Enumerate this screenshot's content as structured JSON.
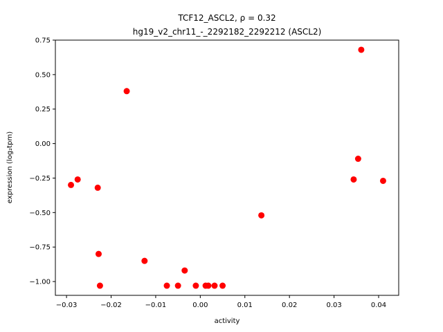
{
  "chart_data": {
    "type": "scatter",
    "title_line1": "TCF12_ASCL2, ρ = 0.32",
    "title_line2": "hg19_v2_chr11_-_2292182_2292212 (ASCL2)",
    "xlabel": "activity",
    "ylabel": "expression (log₂tpm)",
    "xlim": [
      -0.0325,
      0.0445
    ],
    "ylim": [
      -1.1,
      0.75
    ],
    "xticks": [
      -0.03,
      -0.02,
      -0.01,
      0.0,
      0.01,
      0.02,
      0.03,
      0.04
    ],
    "xtick_labels": [
      "−0.03",
      "−0.02",
      "−0.01",
      "0.00",
      "0.01",
      "0.02",
      "0.03",
      "0.04"
    ],
    "yticks": [
      0.75,
      0.5,
      0.25,
      0.0,
      -0.25,
      -0.5,
      -0.75,
      -1.0
    ],
    "ytick_labels": [
      "0.75",
      "0.50",
      "0.25",
      "0.00",
      "−0.25",
      "−0.50",
      "−0.75",
      "−1.00"
    ],
    "grid": false,
    "point_color": "#ff0000",
    "points": [
      {
        "x": -0.029,
        "y": -0.3
      },
      {
        "x": -0.0275,
        "y": -0.26
      },
      {
        "x": -0.023,
        "y": -0.32
      },
      {
        "x": -0.0228,
        "y": -0.8
      },
      {
        "x": -0.0225,
        "y": -1.03
      },
      {
        "x": -0.0165,
        "y": 0.38
      },
      {
        "x": -0.0125,
        "y": -0.85
      },
      {
        "x": -0.0075,
        "y": -1.03
      },
      {
        "x": -0.005,
        "y": -1.03
      },
      {
        "x": -0.0035,
        "y": -0.92
      },
      {
        "x": -0.001,
        "y": -1.03
      },
      {
        "x": 0.0012,
        "y": -1.03
      },
      {
        "x": 0.0018,
        "y": -1.03
      },
      {
        "x": 0.0032,
        "y": -1.03
      },
      {
        "x": 0.005,
        "y": -1.03
      },
      {
        "x": 0.0137,
        "y": -0.52
      },
      {
        "x": 0.0344,
        "y": -0.26
      },
      {
        "x": 0.0354,
        "y": -0.11
      },
      {
        "x": 0.0361,
        "y": 0.68
      },
      {
        "x": 0.041,
        "y": -0.27
      }
    ]
  }
}
